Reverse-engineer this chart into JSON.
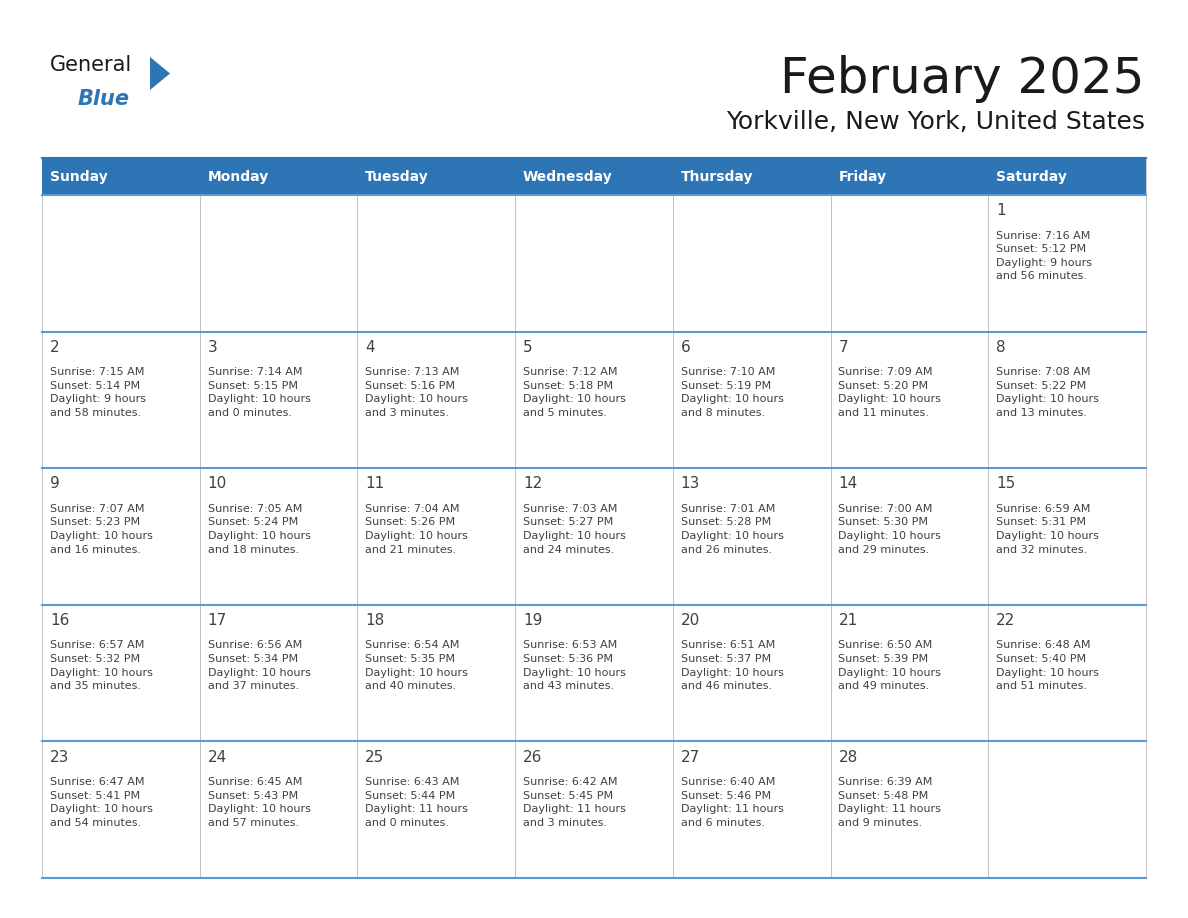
{
  "title": "February 2025",
  "subtitle": "Yorkville, New York, United States",
  "days_of_week": [
    "Sunday",
    "Monday",
    "Tuesday",
    "Wednesday",
    "Thursday",
    "Friday",
    "Saturday"
  ],
  "header_bg": "#2E75B6",
  "header_text": "#FFFFFF",
  "cell_bg_white": "#FFFFFF",
  "border_color": "#2E75B6",
  "row_border_color": "#5B9BD5",
  "text_color": "#404040",
  "day_num_color": "#404040",
  "grid_line_color": "#C0C0C0",
  "calendar_data": [
    [
      null,
      null,
      null,
      null,
      null,
      null,
      {
        "day": 1,
        "sunrise": "7:16 AM",
        "sunset": "5:12 PM",
        "daylight": "9 hours\nand 56 minutes."
      }
    ],
    [
      {
        "day": 2,
        "sunrise": "7:15 AM",
        "sunset": "5:14 PM",
        "daylight": "9 hours\nand 58 minutes."
      },
      {
        "day": 3,
        "sunrise": "7:14 AM",
        "sunset": "5:15 PM",
        "daylight": "10 hours\nand 0 minutes."
      },
      {
        "day": 4,
        "sunrise": "7:13 AM",
        "sunset": "5:16 PM",
        "daylight": "10 hours\nand 3 minutes."
      },
      {
        "day": 5,
        "sunrise": "7:12 AM",
        "sunset": "5:18 PM",
        "daylight": "10 hours\nand 5 minutes."
      },
      {
        "day": 6,
        "sunrise": "7:10 AM",
        "sunset": "5:19 PM",
        "daylight": "10 hours\nand 8 minutes."
      },
      {
        "day": 7,
        "sunrise": "7:09 AM",
        "sunset": "5:20 PM",
        "daylight": "10 hours\nand 11 minutes."
      },
      {
        "day": 8,
        "sunrise": "7:08 AM",
        "sunset": "5:22 PM",
        "daylight": "10 hours\nand 13 minutes."
      }
    ],
    [
      {
        "day": 9,
        "sunrise": "7:07 AM",
        "sunset": "5:23 PM",
        "daylight": "10 hours\nand 16 minutes."
      },
      {
        "day": 10,
        "sunrise": "7:05 AM",
        "sunset": "5:24 PM",
        "daylight": "10 hours\nand 18 minutes."
      },
      {
        "day": 11,
        "sunrise": "7:04 AM",
        "sunset": "5:26 PM",
        "daylight": "10 hours\nand 21 minutes."
      },
      {
        "day": 12,
        "sunrise": "7:03 AM",
        "sunset": "5:27 PM",
        "daylight": "10 hours\nand 24 minutes."
      },
      {
        "day": 13,
        "sunrise": "7:01 AM",
        "sunset": "5:28 PM",
        "daylight": "10 hours\nand 26 minutes."
      },
      {
        "day": 14,
        "sunrise": "7:00 AM",
        "sunset": "5:30 PM",
        "daylight": "10 hours\nand 29 minutes."
      },
      {
        "day": 15,
        "sunrise": "6:59 AM",
        "sunset": "5:31 PM",
        "daylight": "10 hours\nand 32 minutes."
      }
    ],
    [
      {
        "day": 16,
        "sunrise": "6:57 AM",
        "sunset": "5:32 PM",
        "daylight": "10 hours\nand 35 minutes."
      },
      {
        "day": 17,
        "sunrise": "6:56 AM",
        "sunset": "5:34 PM",
        "daylight": "10 hours\nand 37 minutes."
      },
      {
        "day": 18,
        "sunrise": "6:54 AM",
        "sunset": "5:35 PM",
        "daylight": "10 hours\nand 40 minutes."
      },
      {
        "day": 19,
        "sunrise": "6:53 AM",
        "sunset": "5:36 PM",
        "daylight": "10 hours\nand 43 minutes."
      },
      {
        "day": 20,
        "sunrise": "6:51 AM",
        "sunset": "5:37 PM",
        "daylight": "10 hours\nand 46 minutes."
      },
      {
        "day": 21,
        "sunrise": "6:50 AM",
        "sunset": "5:39 PM",
        "daylight": "10 hours\nand 49 minutes."
      },
      {
        "day": 22,
        "sunrise": "6:48 AM",
        "sunset": "5:40 PM",
        "daylight": "10 hours\nand 51 minutes."
      }
    ],
    [
      {
        "day": 23,
        "sunrise": "6:47 AM",
        "sunset": "5:41 PM",
        "daylight": "10 hours\nand 54 minutes."
      },
      {
        "day": 24,
        "sunrise": "6:45 AM",
        "sunset": "5:43 PM",
        "daylight": "10 hours\nand 57 minutes."
      },
      {
        "day": 25,
        "sunrise": "6:43 AM",
        "sunset": "5:44 PM",
        "daylight": "11 hours\nand 0 minutes."
      },
      {
        "day": 26,
        "sunrise": "6:42 AM",
        "sunset": "5:45 PM",
        "daylight": "11 hours\nand 3 minutes."
      },
      {
        "day": 27,
        "sunrise": "6:40 AM",
        "sunset": "5:46 PM",
        "daylight": "11 hours\nand 6 minutes."
      },
      {
        "day": 28,
        "sunrise": "6:39 AM",
        "sunset": "5:48 PM",
        "daylight": "11 hours\nand 9 minutes."
      },
      null
    ]
  ],
  "logo_text_general": "General",
  "logo_text_blue": "Blue",
  "logo_color_general": "#1a1a1a",
  "logo_color_blue": "#2E75B6",
  "logo_triangle_color": "#2E75B6",
  "title_fontsize": 36,
  "subtitle_fontsize": 18,
  "header_fontsize": 10,
  "day_num_fontsize": 11,
  "cell_text_fontsize": 8
}
